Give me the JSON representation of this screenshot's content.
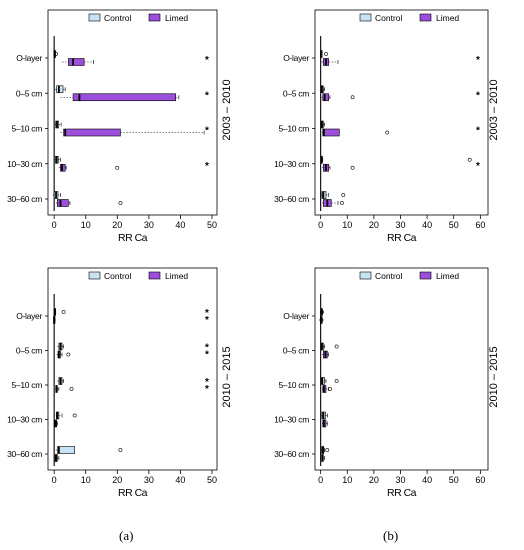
{
  "figure": {
    "captions": [
      "(a)",
      "(b)"
    ],
    "period_labels": [
      "2003 – 2010",
      "2010 – 2015"
    ]
  },
  "colors": {
    "control": "#c7e3f4",
    "limed": "#9b4fdb",
    "axis": "#000000"
  },
  "chart_data": [
    {
      "id": "a-2003-2010",
      "type": "box",
      "caption": "(a)",
      "period": "2003 – 2010",
      "xlabel": "RR Ca",
      "ylabel": "",
      "xlim": [
        -1,
        50
      ],
      "xticks": [
        0,
        10,
        20,
        30,
        40,
        50
      ],
      "categories": [
        "O-layer",
        "0–5 cm",
        "5–10 cm",
        "10–30 cm",
        "30–60 cm"
      ],
      "legend": [
        "Control",
        "Limed"
      ],
      "legend_position": "top-right",
      "significance": [
        "*",
        "*",
        "*",
        "*",
        ""
      ],
      "series": [
        {
          "name": "Control",
          "boxes": [
            {
              "min": 0,
              "q1": 0,
              "median": 0.1,
              "q3": 0.1,
              "max": 0.2,
              "outliers": [
                0.6
              ]
            },
            {
              "min": 0.3,
              "q1": 0.8,
              "median": 1.5,
              "q3": 2.8,
              "max": 3.5,
              "outliers": []
            },
            {
              "min": 0.2,
              "q1": 0.5,
              "median": 0.9,
              "q3": 1.4,
              "max": 2.2,
              "outliers": []
            },
            {
              "min": 0.1,
              "q1": 0.4,
              "median": 0.8,
              "q3": 1.3,
              "max": 2.0,
              "outliers": []
            },
            {
              "min": -0.5,
              "q1": 0,
              "median": 0.6,
              "q3": 1.2,
              "max": 2.0,
              "outliers": []
            }
          ]
        },
        {
          "name": "Limed",
          "boxes": [
            {
              "min": 2.5,
              "q1": 4.5,
              "median": 6.0,
              "q3": 9.5,
              "max": 12.5,
              "outliers": []
            },
            {
              "min": 2.0,
              "q1": 6.0,
              "median": 8.0,
              "q3": 38.5,
              "max": 39.5,
              "outliers": []
            },
            {
              "min": 2.0,
              "q1": 3.0,
              "median": 3.5,
              "q3": 21.0,
              "max": 47.5,
              "outliers": []
            },
            {
              "min": 1.5,
              "q1": 2.0,
              "median": 2.5,
              "q3": 3.5,
              "max": 3.8,
              "outliers": [
                20.0
              ]
            },
            {
              "min": 0.5,
              "q1": 1.0,
              "median": 2.0,
              "q3": 4.5,
              "max": 5.0,
              "outliers": [
                21.0
              ]
            }
          ]
        }
      ]
    },
    {
      "id": "b-2003-2010",
      "type": "box",
      "caption": "(b)",
      "period": "2003 – 2010",
      "xlabel": "RR Ca",
      "ylabel": "",
      "xlim": [
        -1,
        61
      ],
      "xticks": [
        0,
        10,
        20,
        30,
        40,
        50,
        60
      ],
      "categories": [
        "O-layer",
        "0–5 cm",
        "5–10 cm",
        "10–30 cm",
        "30–60 cm"
      ],
      "legend": [
        "Control",
        "Limed"
      ],
      "legend_position": "top-right",
      "significance": [
        "*",
        "*",
        "*",
        "*",
        ""
      ],
      "series": [
        {
          "name": "Control",
          "boxes": [
            {
              "min": 0,
              "q1": 0,
              "median": 0.1,
              "q3": 0.2,
              "max": 0.3,
              "outliers": [
                2.0
              ]
            },
            {
              "min": 0,
              "q1": 0.2,
              "median": 0.5,
              "q3": 1.0,
              "max": 1.5,
              "outliers": []
            },
            {
              "min": 0,
              "q1": 0.2,
              "median": 0.5,
              "q3": 1.0,
              "max": 1.5,
              "outliers": []
            },
            {
              "min": 0,
              "q1": 0.1,
              "median": 0.3,
              "q3": 0.5,
              "max": 0.8,
              "outliers": [
                56.0
              ]
            },
            {
              "min": 0,
              "q1": 0.5,
              "median": 1.0,
              "q3": 2.0,
              "max": 3.0,
              "outliers": [
                8.5
              ]
            }
          ]
        },
        {
          "name": "Limed",
          "boxes": [
            {
              "min": 0.3,
              "q1": 1.0,
              "median": 2.0,
              "q3": 3.0,
              "max": 6.5,
              "outliers": []
            },
            {
              "min": 0.3,
              "q1": 0.8,
              "median": 1.5,
              "q3": 3.0,
              "max": 3.5,
              "outliers": [
                12.0
              ]
            },
            {
              "min": 0.5,
              "q1": 0.8,
              "median": 1.2,
              "q3": 7.0,
              "max": 7.0,
              "outliers": [
                25.0
              ]
            },
            {
              "min": 0.5,
              "q1": 1.0,
              "median": 2.0,
              "q3": 3.0,
              "max": 3.5,
              "outliers": [
                12.0
              ]
            },
            {
              "min": 0.5,
              "q1": 1.0,
              "median": 2.5,
              "q3": 4.0,
              "max": 6.5,
              "outliers": [
                8.0
              ]
            }
          ]
        }
      ]
    },
    {
      "id": "a-2010-2015",
      "type": "box",
      "caption": "(a)",
      "period": "2010 – 2015",
      "xlabel": "RR Ca",
      "ylabel": "",
      "xlim": [
        -1,
        50
      ],
      "xticks": [
        0,
        10,
        20,
        30,
        40,
        50
      ],
      "categories": [
        "O-layer",
        "0–5 cm",
        "5–10 cm",
        "10–30 cm",
        "30–60 cm"
      ],
      "legend": [
        "Control",
        "Limed"
      ],
      "legend_position": "top-right",
      "significance": [
        "* *",
        "* *",
        "* *",
        "",
        ""
      ],
      "series": [
        {
          "name": "Control",
          "boxes": [
            {
              "min": 0,
              "q1": 0,
              "median": 0.2,
              "q3": 0.4,
              "max": 0.5,
              "outliers": [
                3.0
              ]
            },
            {
              "min": 1.0,
              "q1": 1.5,
              "median": 2.0,
              "q3": 2.5,
              "max": 3.0,
              "outliers": []
            },
            {
              "min": 1.0,
              "q1": 1.5,
              "median": 2.0,
              "q3": 2.5,
              "max": 3.0,
              "outliers": []
            },
            {
              "min": 0.5,
              "q1": 0.7,
              "median": 1.0,
              "q3": 1.5,
              "max": 2.5,
              "outliers": [
                6.5
              ]
            },
            {
              "min": 0.5,
              "q1": 1.0,
              "median": 1.5,
              "q3": 6.5,
              "max": 6.5,
              "outliers": [
                21.0
              ]
            }
          ]
        },
        {
          "name": "Limed",
          "boxes": [
            {
              "min": -0.3,
              "q1": -0.2,
              "median": 0,
              "q3": 0.1,
              "max": 0.3,
              "outliers": []
            },
            {
              "min": 0.8,
              "q1": 1.2,
              "median": 1.5,
              "q3": 2.0,
              "max": 2.5,
              "outliers": [
                4.5
              ]
            },
            {
              "min": 0.3,
              "q1": 0.5,
              "median": 0.8,
              "q3": 1.0,
              "max": 1.5,
              "outliers": [
                5.5
              ]
            },
            {
              "min": 0,
              "q1": 0.2,
              "median": 0.5,
              "q3": 0.8,
              "max": 1.0,
              "outliers": []
            },
            {
              "min": 0,
              "q1": 0.3,
              "median": 0.6,
              "q3": 1.0,
              "max": 1.5,
              "outliers": []
            }
          ]
        }
      ]
    },
    {
      "id": "b-2010-2015",
      "type": "box",
      "caption": "(b)",
      "period": "2010 – 2015",
      "xlabel": "RR Ca",
      "ylabel": "",
      "xlim": [
        -1,
        61
      ],
      "xticks": [
        0,
        10,
        20,
        30,
        40,
        50,
        60
      ],
      "categories": [
        "O-layer",
        "0–5 cm",
        "5–10 cm",
        "10–30 cm",
        "30–60 cm"
      ],
      "legend": [
        "Control",
        "Limed"
      ],
      "legend_position": "top-right",
      "significance": [
        "",
        "",
        "",
        "",
        ""
      ],
      "series": [
        {
          "name": "Control",
          "boxes": [
            {
              "min": 0,
              "q1": 0.1,
              "median": 0.3,
              "q3": 0.5,
              "max": 0.8,
              "outliers": [
                0.5
              ]
            },
            {
              "min": 0,
              "q1": 0.2,
              "median": 0.5,
              "q3": 1.0,
              "max": 1.5,
              "outliers": [
                6.0
              ]
            },
            {
              "min": 0,
              "q1": 0.3,
              "median": 0.6,
              "q3": 1.5,
              "max": 2.0,
              "outliers": [
                6.0
              ]
            },
            {
              "min": 0.2,
              "q1": 0.5,
              "median": 1.0,
              "q3": 1.8,
              "max": 2.5,
              "outliers": []
            },
            {
              "min": 0.2,
              "q1": 0.4,
              "median": 0.8,
              "q3": 1.2,
              "max": 1.5,
              "outliers": [
                2.5
              ]
            }
          ]
        },
        {
          "name": "Limed",
          "boxes": [
            {
              "min": 0,
              "q1": 0,
              "median": 0.1,
              "q3": 0.3,
              "max": 0.5,
              "outliers": [
                0.3
              ]
            },
            {
              "min": 0.5,
              "q1": 1.0,
              "median": 1.8,
              "q3": 2.5,
              "max": 3.0,
              "outliers": []
            },
            {
              "min": 0.5,
              "q1": 0.8,
              "median": 1.2,
              "q3": 2.0,
              "max": 3.0,
              "outliers": [
                3.5
              ]
            },
            {
              "min": 0.5,
              "q1": 0.8,
              "median": 1.2,
              "q3": 2.0,
              "max": 2.5,
              "outliers": []
            },
            {
              "min": 0.2,
              "q1": 0.4,
              "median": 0.7,
              "q3": 1.0,
              "max": 1.5,
              "outliers": []
            }
          ]
        }
      ]
    }
  ]
}
